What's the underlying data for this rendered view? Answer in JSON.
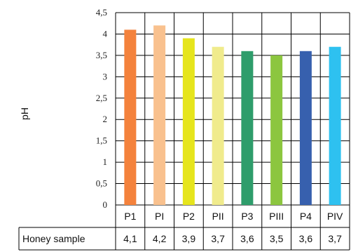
{
  "chart_data": {
    "type": "bar",
    "ylabel": "pH",
    "ylim": [
      0,
      4.5
    ],
    "yticks": [
      "0",
      "0,5",
      "1",
      "1,5",
      "2",
      "2,5",
      "3",
      "3,5",
      "4",
      "4,5"
    ],
    "ytick_values": [
      0,
      0.5,
      1,
      1.5,
      2,
      2.5,
      3,
      3.5,
      4,
      4.5
    ],
    "grid": true,
    "categories": [
      "P1",
      "PI",
      "P2",
      "PII",
      "P3",
      "PIII",
      "P4",
      "PIV"
    ],
    "values": [
      4.1,
      4.2,
      3.9,
      3.7,
      3.6,
      3.5,
      3.6,
      3.7
    ],
    "value_labels": [
      "4,1",
      "4,2",
      "3,9",
      "3,7",
      "3,6",
      "3,5",
      "3,6",
      "3,7"
    ],
    "colors": [
      "#f4823c",
      "#f9c18e",
      "#e6e51c",
      "#f0eb8c",
      "#2e9d6b",
      "#8cc63f",
      "#3760ae",
      "#2ec1f0"
    ],
    "table_row_label": "Honey sample"
  }
}
